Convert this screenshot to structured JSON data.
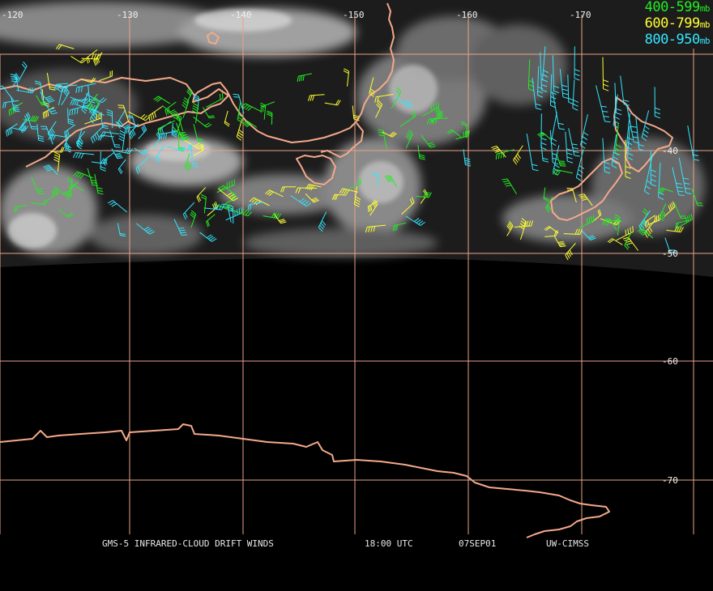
{
  "legend": [
    {
      "range": "400-599",
      "unit": "mb",
      "color": "#22ee22"
    },
    {
      "range": "600-799",
      "unit": "mb",
      "color": "#ffff33"
    },
    {
      "range": "800-950",
      "unit": "mb",
      "color": "#33e6ff"
    }
  ],
  "lon_labels": [
    "-120",
    "-130",
    "-140",
    "-150",
    "-160",
    "-170"
  ],
  "lat_labels": [
    "-40",
    "-50",
    "-60",
    "-70"
  ],
  "caption": {
    "product": "GMS-5 INFRARED-CLOUD DRIFT WINDS",
    "time": "18:00 UTC",
    "date": "07SEP01",
    "source": "UW-CIMSS"
  },
  "colors": {
    "coastline": "#f4a98a",
    "grid": "#e8a488",
    "background": "#000000"
  }
}
